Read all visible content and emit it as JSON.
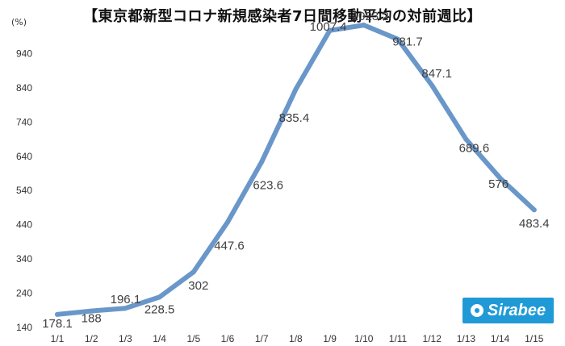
{
  "brand": {
    "name": "Sirabee",
    "color": "#1f9ad6"
  },
  "chart_data": {
    "type": "line",
    "title": "【東京都新型コロナ新規感染者7日間移動平均の対前週比】",
    "unit_label": "(%)",
    "categories": [
      "1/1",
      "1/2",
      "1/3",
      "1/4",
      "1/5",
      "1/6",
      "1/7",
      "1/8",
      "1/9",
      "1/10",
      "1/11",
      "1/12",
      "1/13",
      "1/14",
      "1/15"
    ],
    "series": [
      {
        "values": [
          178.1,
          188,
          196.1,
          228.5,
          302,
          447.6,
          623.6,
          835.4,
          1007.4,
          1023.2,
          981.7,
          847.1,
          689.6,
          576,
          483.4
        ]
      }
    ],
    "data_labels": [
      "178.1",
      "188",
      "196.1",
      "228.5",
      "302",
      "447.6",
      "623.6",
      "835.4",
      "1007.4",
      "1023.2",
      "981.7",
      "847.1",
      "689.6",
      "576",
      "483.4"
    ],
    "y_ticks": [
      140,
      240,
      340,
      440,
      540,
      640,
      740,
      840,
      940
    ],
    "ylim": [
      140,
      1040
    ],
    "xlabel": "",
    "ylabel": "",
    "grid": false,
    "legend": "none",
    "line_color": "#6a97c9"
  }
}
